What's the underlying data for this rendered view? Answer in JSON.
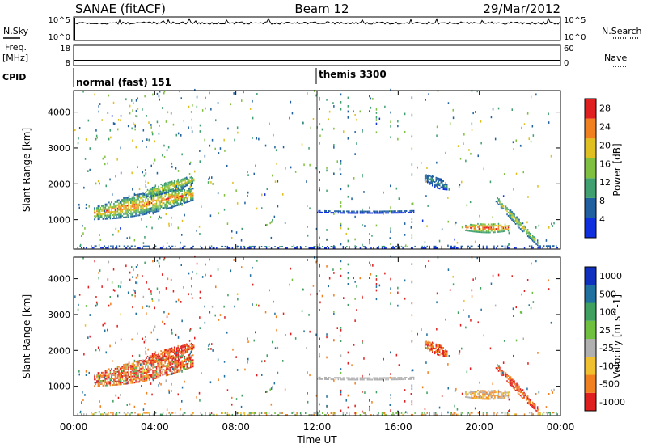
{
  "chart_data": {
    "type": "heatmap",
    "header": {
      "station": "SANAE (fitACF)",
      "beam": "Beam 12",
      "date": "29/Mar/2012"
    },
    "time_axis": {
      "xlabel": "Time UT",
      "xlim_hours": [
        0,
        24
      ],
      "tick_hours": [
        0,
        4,
        8,
        12,
        16,
        20,
        24
      ],
      "tick_labels": [
        "00:00",
        "04:00",
        "08:00",
        "12:00",
        "16:00",
        "20:00",
        "00:00"
      ]
    },
    "noise_panel": {
      "left_label": "N.Sky",
      "right_label": "N.Search",
      "left_ticks": [
        "10^5",
        "10^0"
      ],
      "right_ticks": [
        "10^5",
        "10^0"
      ]
    },
    "freq_panel": {
      "left_label_1": "Freq.",
      "left_label_2": "[MHz]",
      "right_label": "Nave",
      "left_ticks": [
        18,
        8
      ],
      "right_ticks": [
        60,
        0
      ],
      "freq_mhz": 10.5,
      "nave": 30
    },
    "cpid": {
      "label": "CPID",
      "segments": [
        {
          "start_hour": 0,
          "text": "normal (fast) 151"
        },
        {
          "start_hour": 12,
          "text": "themis 3300"
        }
      ]
    },
    "range_axis": {
      "ylabel": "Slant Range [km]",
      "ylim": [
        180,
        4600
      ],
      "ticks": [
        1000,
        2000,
        3000,
        4000
      ]
    },
    "power": {
      "label": "Power [dB]",
      "ticks": [
        4,
        8,
        12,
        16,
        20,
        24,
        28
      ],
      "clim": [
        0,
        30
      ],
      "colors": [
        "#1030e0",
        "#2060a0",
        "#40a070",
        "#80c040",
        "#e0c020",
        "#f08020",
        "#e02020"
      ]
    },
    "velocity": {
      "label": "Velocity [m s^-1]",
      "ticks": [
        "1000",
        "500",
        "100",
        "25",
        "-25",
        "-100",
        "-500",
        "-1000"
      ],
      "colors": [
        "#1030c0",
        "#2070a0",
        "#40a060",
        "#70c040",
        "#b0b0b0",
        "#f0c030",
        "#f08020",
        "#e02020"
      ]
    },
    "scatter_regions": [
      {
        "name": "morning arc",
        "t": [
          1.0,
          5.9
        ],
        "r_center": [
          1150,
          1700
        ],
        "r_half": 300,
        "pow": [
          6,
          26
        ],
        "vel": [
          -500,
          100
        ]
      },
      {
        "name": "upper arc",
        "t": [
          3.5,
          5.9
        ],
        "r_center": [
          1700,
          2100
        ],
        "r_half": 150,
        "pow": [
          8,
          20
        ],
        "vel": [
          -500,
          -100
        ]
      },
      {
        "name": "themis band",
        "t": [
          12.0,
          16.8
        ],
        "r_center": [
          1200,
          1200
        ],
        "r_half": 40,
        "pow": [
          4,
          8
        ],
        "vel": [
          -25,
          25
        ]
      },
      {
        "name": "evening blob",
        "t": [
          19.3,
          21.5
        ],
        "r_center": [
          750,
          750
        ],
        "r_half": 130,
        "pow": [
          10,
          30
        ],
        "vel": [
          -100,
          25
        ]
      },
      {
        "name": "diagonal echo",
        "t": [
          20.8,
          22.9
        ],
        "r_center": [
          1550,
          300
        ],
        "r_half": 120,
        "pow": [
          6,
          20
        ],
        "vel": [
          -500,
          -100
        ]
      },
      {
        "name": "upper dusk",
        "t": [
          17.3,
          18.4
        ],
        "r_center": [
          2150,
          1900
        ],
        "r_half": 150,
        "pow": [
          4,
          10
        ],
        "vel": [
          -500,
          -100
        ]
      },
      {
        "name": "near range",
        "t": [
          0,
          24
        ],
        "r_center": [
          220,
          220
        ],
        "r_half": 40,
        "pow": [
          4,
          10
        ],
        "vel": [
          -100,
          100
        ]
      }
    ]
  }
}
